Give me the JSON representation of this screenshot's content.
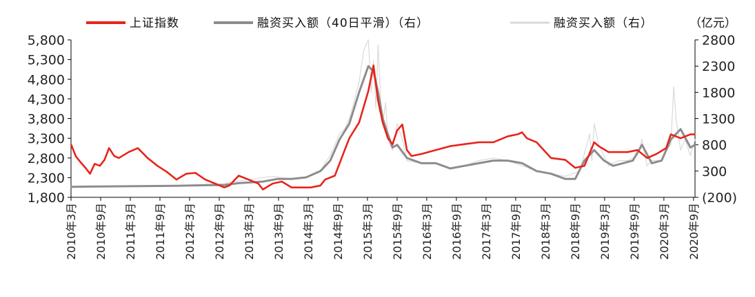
{
  "chart_data": {
    "type": "line",
    "unit_label": "（亿元）",
    "left_axis": {
      "ylim": [
        1800,
        5800
      ],
      "ticks": [
        "5,800",
        "5,300",
        "4,800",
        "4,300",
        "3,800",
        "3,300",
        "2,800",
        "2,300",
        "1,800"
      ],
      "tick_values": [
        5800,
        5300,
        4800,
        4300,
        3800,
        3300,
        2800,
        2300,
        1800
      ]
    },
    "right_axis": {
      "ylim": [
        -200,
        2800
      ],
      "ticks": [
        "2800",
        "2300",
        "1800",
        "1300",
        "800",
        "300",
        "(200)"
      ],
      "tick_values": [
        2800,
        2300,
        1800,
        1300,
        800,
        300,
        -200
      ]
    },
    "x_ticks": [
      "2010年3月",
      "2010年9月",
      "2011年3月",
      "2011年9月",
      "2012年3月",
      "2012年9月",
      "2013年3月",
      "2013年9月",
      "2014年3月",
      "2014年9月",
      "2015年3月",
      "2015年9月",
      "2016年3月",
      "2016年9月",
      "2017年3月",
      "2017年9月",
      "2018年3月",
      "2018年9月",
      "2019年3月",
      "2019年9月",
      "2020年3月",
      "2020年9月"
    ],
    "x_range": [
      2010.17,
      2021.0
    ],
    "colors": {
      "index": "#e8231a",
      "smooth": "#8c8c8c",
      "raw": "#d9d9d9"
    },
    "series": [
      {
        "name": "上证指数",
        "axis": "left",
        "x": [
          2010.17,
          2010.25,
          2010.33,
          2010.42,
          2010.5,
          2010.58,
          2010.67,
          2010.75,
          2010.83,
          2010.92,
          2011.0,
          2011.17,
          2011.33,
          2011.5,
          2011.67,
          2011.83,
          2012.0,
          2012.17,
          2012.33,
          2012.5,
          2012.67,
          2012.83,
          2012.92,
          2013.08,
          2013.25,
          2013.42,
          2013.5,
          2013.67,
          2013.83,
          2014.0,
          2014.17,
          2014.33,
          2014.5,
          2014.58,
          2014.75,
          2014.92,
          2015.0,
          2015.17,
          2015.33,
          2015.42,
          2015.45,
          2015.5,
          2015.58,
          2015.67,
          2015.75,
          2015.83,
          2015.92,
          2016.0,
          2016.08,
          2016.25,
          2016.5,
          2016.75,
          2017.0,
          2017.25,
          2017.5,
          2017.75,
          2017.92,
          2018.0,
          2018.08,
          2018.25,
          2018.5,
          2018.75,
          2018.92,
          2019.08,
          2019.25,
          2019.33,
          2019.5,
          2019.67,
          2019.83,
          2020.0,
          2020.17,
          2020.33,
          2020.5,
          2020.58,
          2020.75,
          2020.92,
          2021.0
        ],
        "values": [
          3150,
          2850,
          2700,
          2550,
          2400,
          2650,
          2600,
          2750,
          3050,
          2850,
          2800,
          2950,
          3050,
          2800,
          2600,
          2450,
          2250,
          2400,
          2420,
          2250,
          2150,
          2050,
          2100,
          2350,
          2250,
          2150,
          2000,
          2150,
          2200,
          2050,
          2050,
          2050,
          2100,
          2250,
          2350,
          3000,
          3300,
          3700,
          4500,
          5150,
          4800,
          4250,
          3700,
          3300,
          3150,
          3500,
          3650,
          3000,
          2850,
          2900,
          3000,
          3100,
          3150,
          3200,
          3200,
          3350,
          3400,
          3450,
          3300,
          3200,
          2800,
          2750,
          2550,
          2600,
          3200,
          3100,
          2950,
          2950,
          2950,
          3000,
          2800,
          2900,
          3050,
          3400,
          3300,
          3400,
          3400
        ]
      },
      {
        "name": "融资买入额（40日平滑）（右）",
        "axis": "right",
        "x": [
          2010.17,
          2010.5,
          2011.0,
          2011.5,
          2012.0,
          2012.5,
          2012.83,
          2013.08,
          2013.5,
          2013.75,
          2014.0,
          2014.25,
          2014.5,
          2014.67,
          2014.83,
          2015.0,
          2015.17,
          2015.33,
          2015.42,
          2015.5,
          2015.58,
          2015.67,
          2015.75,
          2015.83,
          2016.0,
          2016.25,
          2016.5,
          2016.75,
          2017.0,
          2017.25,
          2017.5,
          2017.75,
          2018.0,
          2018.25,
          2018.5,
          2018.75,
          2018.92,
          2019.08,
          2019.25,
          2019.42,
          2019.58,
          2019.75,
          2019.92,
          2020.08,
          2020.25,
          2020.42,
          2020.58,
          2020.75,
          2020.92,
          2021.0
        ],
        "values": [
          0,
          5,
          10,
          15,
          20,
          30,
          35,
          70,
          100,
          150,
          150,
          180,
          300,
          500,
          900,
          1200,
          1800,
          2300,
          2200,
          1800,
          1300,
          1000,
          750,
          800,
          550,
          450,
          450,
          350,
          400,
          450,
          500,
          500,
          450,
          300,
          250,
          150,
          150,
          500,
          700,
          500,
          400,
          450,
          500,
          800,
          450,
          500,
          900,
          1100,
          750,
          800
        ]
      },
      {
        "name": "融资买入额（右）",
        "axis": "right",
        "x": [
          2012.5,
          2012.83,
          2013.0,
          2013.33,
          2013.67,
          2014.0,
          2014.25,
          2014.5,
          2014.58,
          2014.67,
          2014.75,
          2014.83,
          2014.92,
          2015.0,
          2015.08,
          2015.17,
          2015.25,
          2015.33,
          2015.38,
          2015.42,
          2015.46,
          2015.5,
          2015.55,
          2015.58,
          2015.63,
          2015.67,
          2015.75,
          2015.83,
          2015.92,
          2016.0,
          2016.25,
          2016.5,
          2016.75,
          2017.0,
          2017.25,
          2017.5,
          2017.75,
          2018.0,
          2018.25,
          2018.5,
          2018.75,
          2019.0,
          2019.17,
          2019.21,
          2019.25,
          2019.33,
          2019.5,
          2019.67,
          2019.83,
          2020.0,
          2020.08,
          2020.17,
          2020.25,
          2020.42,
          2020.5,
          2020.58,
          2020.63,
          2020.67,
          2020.75,
          2020.83,
          2020.92,
          2021.0
        ],
        "values": [
          50,
          60,
          100,
          150,
          200,
          150,
          180,
          300,
          450,
          600,
          800,
          1000,
          1100,
          1300,
          1600,
          2000,
          2600,
          2800,
          1800,
          2400,
          1500,
          2700,
          1500,
          1200,
          1600,
          900,
          700,
          1200,
          900,
          500,
          450,
          450,
          350,
          400,
          500,
          550,
          500,
          400,
          300,
          250,
          200,
          300,
          1000,
          500,
          1200,
          800,
          400,
          500,
          500,
          600,
          900,
          400,
          500,
          500,
          700,
          800,
          1900,
          1300,
          700,
          900,
          600,
          900
        ]
      }
    ]
  }
}
